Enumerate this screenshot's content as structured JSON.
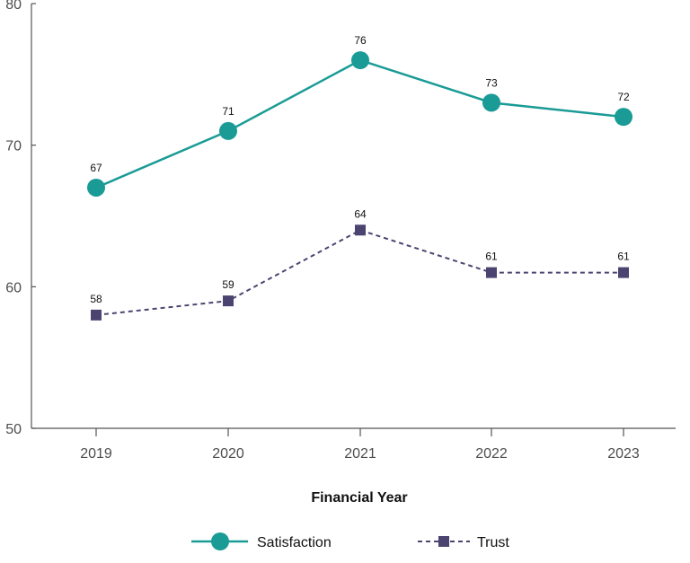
{
  "chart_data": {
    "type": "line",
    "categories": [
      "2019",
      "2020",
      "2021",
      "2022",
      "2023"
    ],
    "xlabel": "Financial Year",
    "ylabel": "",
    "ylim": [
      50,
      80
    ],
    "yticks": [
      "50",
      "60",
      "70",
      "80"
    ],
    "grid": false,
    "legend_position": "bottom",
    "series": [
      {
        "name": "Satisfaction",
        "values": [
          67,
          71,
          76,
          73,
          72
        ],
        "color": "#1a9b96",
        "marker": "circle",
        "line_style": "solid"
      },
      {
        "name": "Trust",
        "values": [
          58,
          59,
          64,
          61,
          61
        ],
        "color": "#4b4470",
        "marker": "square",
        "line_style": "dashed"
      }
    ]
  }
}
